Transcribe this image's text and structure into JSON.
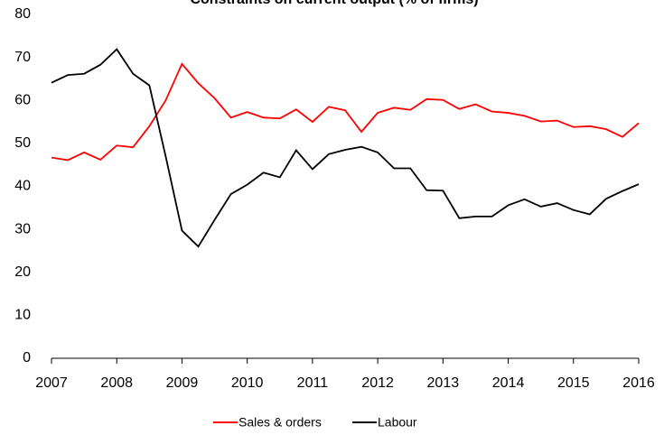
{
  "chart_data": {
    "type": "line",
    "title": "Constraints on current output (% of firms)",
    "x": [
      2007,
      2007.25,
      2007.5,
      2007.75,
      2008,
      2008.25,
      2008.5,
      2008.75,
      2009,
      2009.25,
      2009.5,
      2009.75,
      2010,
      2010.25,
      2010.5,
      2010.75,
      2011,
      2011.25,
      2011.5,
      2011.75,
      2012,
      2012.25,
      2012.5,
      2012.75,
      2013,
      2013.25,
      2013.5,
      2013.75,
      2014,
      2014.25,
      2014.5,
      2014.75,
      2015,
      2015.25,
      2015.5,
      2015.75,
      2016
    ],
    "series": [
      {
        "name": "Sales & orders",
        "color": "#ff0000",
        "values": [
          46.7,
          46.1,
          47.9,
          46.2,
          49.5,
          49.1,
          54,
          60,
          68.5,
          64,
          60.5,
          56,
          57.3,
          56,
          55.8,
          57.9,
          55,
          58.5,
          57.7,
          52.7,
          57.1,
          58.3,
          57.8,
          60.3,
          60.1,
          58,
          59.1,
          57.4,
          57.1,
          56.4,
          55.1,
          55.3,
          53.8,
          54,
          53.3,
          51.5,
          54.7
        ]
      },
      {
        "name": "Labour",
        "color": "#000000",
        "values": [
          64.1,
          65.9,
          66.2,
          68.3,
          71.9,
          66.2,
          63.5,
          47,
          29.7,
          26,
          32.2,
          38.2,
          40.4,
          43.2,
          42.1,
          48.4,
          44,
          47.5,
          48.5,
          49.2,
          47.9,
          44.2,
          44.2,
          39.1,
          39,
          32.6,
          33,
          33,
          35.6,
          37,
          35.3,
          36.1,
          34.5,
          33.5,
          37.1,
          38.9,
          40.5
        ]
      }
    ],
    "xlim": [
      2007,
      2016
    ],
    "xticks": [
      2007,
      2008,
      2009,
      2010,
      2011,
      2012,
      2013,
      2014,
      2015,
      2016
    ],
    "ylim": [
      0,
      80
    ],
    "yticks": [
      0,
      10,
      20,
      30,
      40,
      50,
      60,
      70,
      80
    ],
    "legend": "bottom"
  }
}
